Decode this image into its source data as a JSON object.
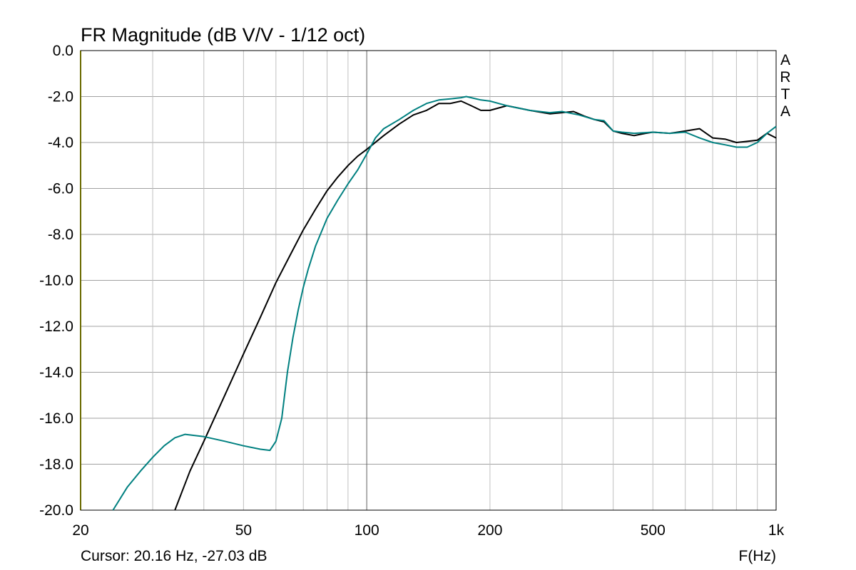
{
  "chart_data": {
    "type": "line",
    "title": "FR Magnitude (dB V/V - 1/12 oct)",
    "xlabel": "F(Hz)",
    "ylabel": "",
    "xscale": "log",
    "xlim": [
      20,
      1000
    ],
    "ylim": [
      -20,
      0
    ],
    "grid": true,
    "x_ticks": [
      20,
      50,
      100,
      200,
      500,
      1000
    ],
    "x_tick_labels": [
      "20",
      "50",
      "100",
      "200",
      "500",
      "1k"
    ],
    "y_ticks": [
      0,
      -2,
      -4,
      -6,
      -8,
      -10,
      -12,
      -14,
      -16,
      -18,
      -20
    ],
    "y_tick_labels": [
      "0.0",
      "-2.0",
      "-4.0",
      "-6.0",
      "-8.0",
      "-10.0",
      "-12.0",
      "-14.0",
      "-16.0",
      "-18.0",
      "-20.0"
    ],
    "watermark": "ARTA",
    "cursor_readout": "Cursor: 20.16 Hz, -27.03 dB",
    "colors": {
      "series_1": "#000000",
      "series_2": "#008080",
      "grid": "#a0a0a0",
      "left_marker": "#d4d400"
    },
    "series": [
      {
        "x": [
          34,
          37,
          40,
          45,
          50,
          55,
          60,
          65,
          70,
          75,
          80,
          85,
          90,
          95,
          100,
          110,
          120,
          130,
          140,
          150,
          160,
          170,
          180,
          190,
          200,
          220,
          250,
          280,
          300,
          320,
          340,
          360,
          380,
          400,
          420,
          450,
          480,
          500,
          550,
          600,
          650,
          700,
          750,
          800,
          850,
          900,
          950,
          1000
        ],
        "y": [
          -20,
          -18.3,
          -17,
          -15,
          -13.2,
          -11.6,
          -10.1,
          -8.9,
          -7.8,
          -6.9,
          -6.1,
          -5.5,
          -5.0,
          -4.6,
          -4.3,
          -3.7,
          -3.2,
          -2.8,
          -2.6,
          -2.3,
          -2.3,
          -2.2,
          -2.4,
          -2.6,
          -2.6,
          -2.4,
          -2.6,
          -2.75,
          -2.7,
          -2.65,
          -2.85,
          -3.0,
          -3.1,
          -3.5,
          -3.6,
          -3.7,
          -3.6,
          -3.55,
          -3.6,
          -3.5,
          -3.4,
          -3.8,
          -3.85,
          -4.0,
          -3.95,
          -3.9,
          -3.6,
          -3.8
        ]
      },
      {
        "x": [
          24,
          26,
          28,
          30,
          32,
          34,
          36,
          40,
          45,
          50,
          55,
          58,
          60,
          62,
          64,
          66,
          68,
          70,
          72,
          75,
          80,
          85,
          90,
          95,
          100,
          105,
          110,
          120,
          130,
          140,
          150,
          160,
          170,
          175,
          180,
          190,
          200,
          210,
          220,
          250,
          280,
          300,
          330,
          360,
          380,
          400,
          420,
          450,
          500,
          550,
          600,
          650,
          700,
          750,
          800,
          850,
          900,
          950,
          1000
        ],
        "y": [
          -20,
          -19,
          -18.3,
          -17.7,
          -17.2,
          -16.85,
          -16.7,
          -16.8,
          -17.0,
          -17.2,
          -17.35,
          -17.4,
          -17.0,
          -16.0,
          -14.0,
          -12.5,
          -11.3,
          -10.3,
          -9.5,
          -8.5,
          -7.3,
          -6.5,
          -5.8,
          -5.2,
          -4.5,
          -3.8,
          -3.4,
          -3.0,
          -2.6,
          -2.3,
          -2.15,
          -2.1,
          -2.05,
          -2.0,
          -2.05,
          -2.15,
          -2.2,
          -2.3,
          -2.4,
          -2.6,
          -2.7,
          -2.65,
          -2.8,
          -3.0,
          -3.05,
          -3.5,
          -3.55,
          -3.6,
          -3.55,
          -3.6,
          -3.55,
          -3.8,
          -4.0,
          -4.1,
          -4.2,
          -4.2,
          -4.0,
          -3.6,
          -3.3
        ]
      }
    ]
  }
}
